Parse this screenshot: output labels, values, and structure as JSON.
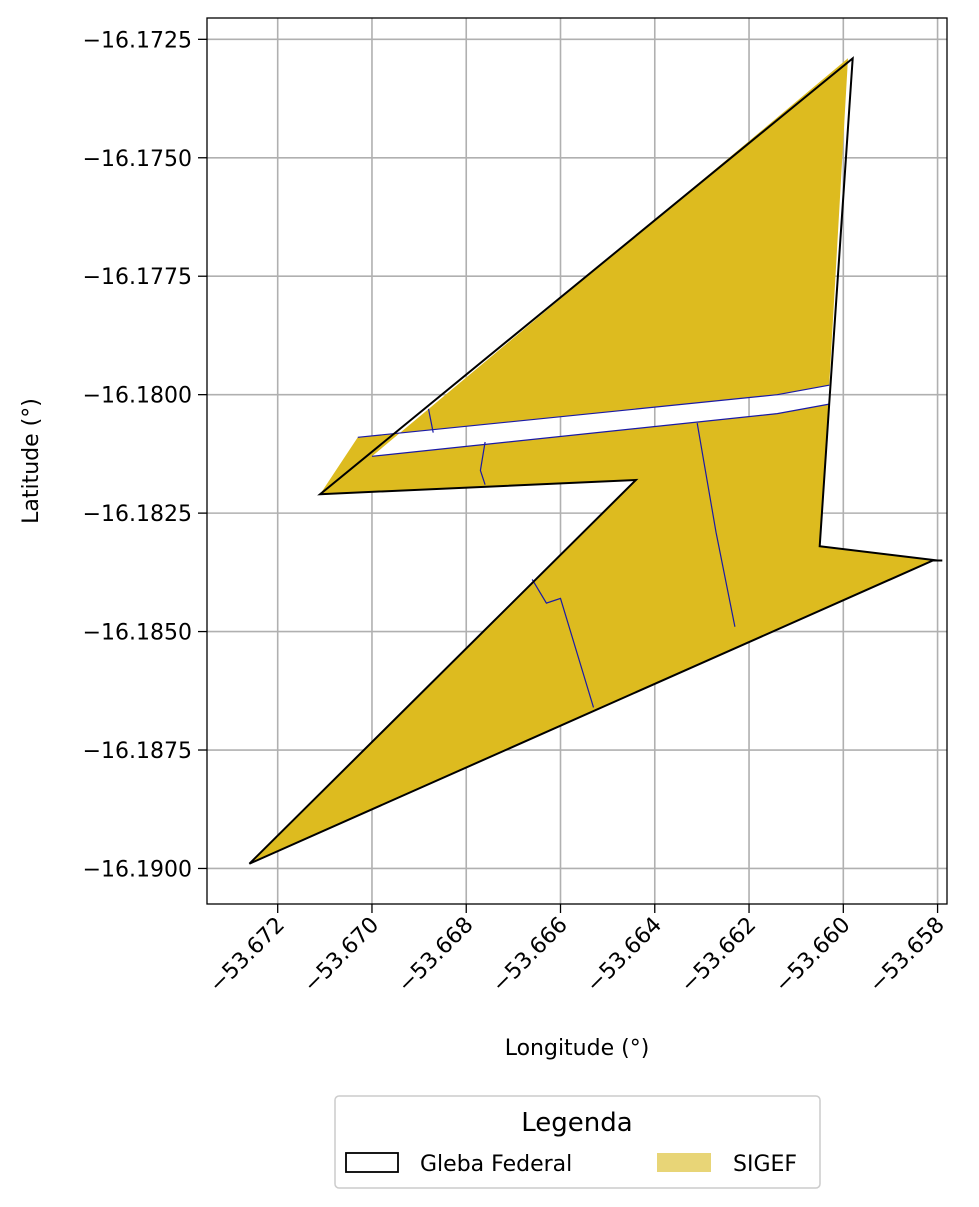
{
  "chart_data": {
    "type": "map",
    "title": "",
    "xlabel": "Longitude (°)",
    "ylabel": "Latitude (°)",
    "xlim": [
      -53.6735,
      -53.6578
    ],
    "ylim": [
      -16.19075,
      -16.17205
    ],
    "grid": true,
    "x_ticks": [
      -53.672,
      -53.67,
      -53.668,
      -53.666,
      -53.664,
      -53.662,
      -53.66,
      -53.658
    ],
    "x_tick_labels": [
      "−53.672",
      "−53.670",
      "−53.668",
      "−53.666",
      "−53.664",
      "−53.662",
      "−53.660",
      "−53.658"
    ],
    "y_ticks": [
      -16.1725,
      -16.175,
      -16.1775,
      -16.18,
      -16.1825,
      -16.185,
      -16.1875,
      -16.19
    ],
    "y_tick_labels": [
      "−16.1725",
      "−16.1750",
      "−16.1775",
      "−16.1800",
      "−16.1825",
      "−16.1850",
      "−16.1875",
      "−16.1900"
    ],
    "colors": {
      "sigef_fill": "#DDBB1F",
      "sigef_legend": "#E8D577",
      "parcel_edge": "#1a1aa6",
      "gleba_edge": "#000000",
      "grid": "#b0b0b0"
    },
    "gleba_federal": [
      [
        -53.6598,
        -16.1729
      ],
      [
        -53.6603,
        -16.1802
      ],
      [
        -53.6605,
        -16.1832
      ],
      [
        -53.658,
        -16.1835
      ],
      [
        -53.6579,
        -16.1835
      ],
      [
        -53.6581,
        -16.1835
      ],
      [
        -53.6726,
        -16.1899
      ],
      [
        -53.6644,
        -16.1818
      ],
      [
        -53.6711,
        -16.1821
      ]
    ],
    "sigef_parcels": [
      [
        [
          -53.6599,
          -16.1729
        ],
        [
          -53.6603,
          -16.1798
        ],
        [
          -53.6614,
          -16.18
        ],
        [
          -53.6703,
          -16.1809
        ],
        [
          -53.6711,
          -16.1821
        ],
        [
          -53.6644,
          -16.1818
        ],
        [
          -53.6726,
          -16.1899
        ],
        [
          -53.6581,
          -16.1835
        ],
        [
          -53.6605,
          -16.1832
        ],
        [
          -53.6603,
          -16.1802
        ],
        [
          -53.6614,
          -16.1804
        ],
        [
          -53.67,
          -16.1813
        ]
      ]
    ],
    "parcel_lines": [
      [
        [
          -53.6703,
          -16.1809
        ],
        [
          -53.6614,
          -16.18
        ],
        [
          -53.6603,
          -16.1798
        ]
      ],
      [
        [
          -53.67,
          -16.1813
        ],
        [
          -53.6614,
          -16.1804
        ],
        [
          -53.6603,
          -16.1802
        ]
      ],
      [
        [
          -53.6688,
          -16.1803
        ],
        [
          -53.6687,
          -16.1808
        ]
      ],
      [
        [
          -53.6676,
          -16.181
        ],
        [
          -53.6677,
          -16.1816
        ],
        [
          -53.6676,
          -16.1819
        ]
      ],
      [
        [
          -53.6631,
          -16.1806
        ],
        [
          -53.6627,
          -16.1829
        ],
        [
          -53.6623,
          -16.1849
        ]
      ],
      [
        [
          -53.6666,
          -16.1839
        ],
        [
          -53.6663,
          -16.1844
        ],
        [
          -53.666,
          -16.1843
        ],
        [
          -53.6653,
          -16.1866
        ]
      ]
    ],
    "legend": {
      "title": "Legenda",
      "placement": "bottom-center",
      "entries": [
        {
          "label": "Gleba Federal",
          "style": "outline"
        },
        {
          "label": "SIGEF",
          "style": "fill"
        }
      ]
    }
  }
}
